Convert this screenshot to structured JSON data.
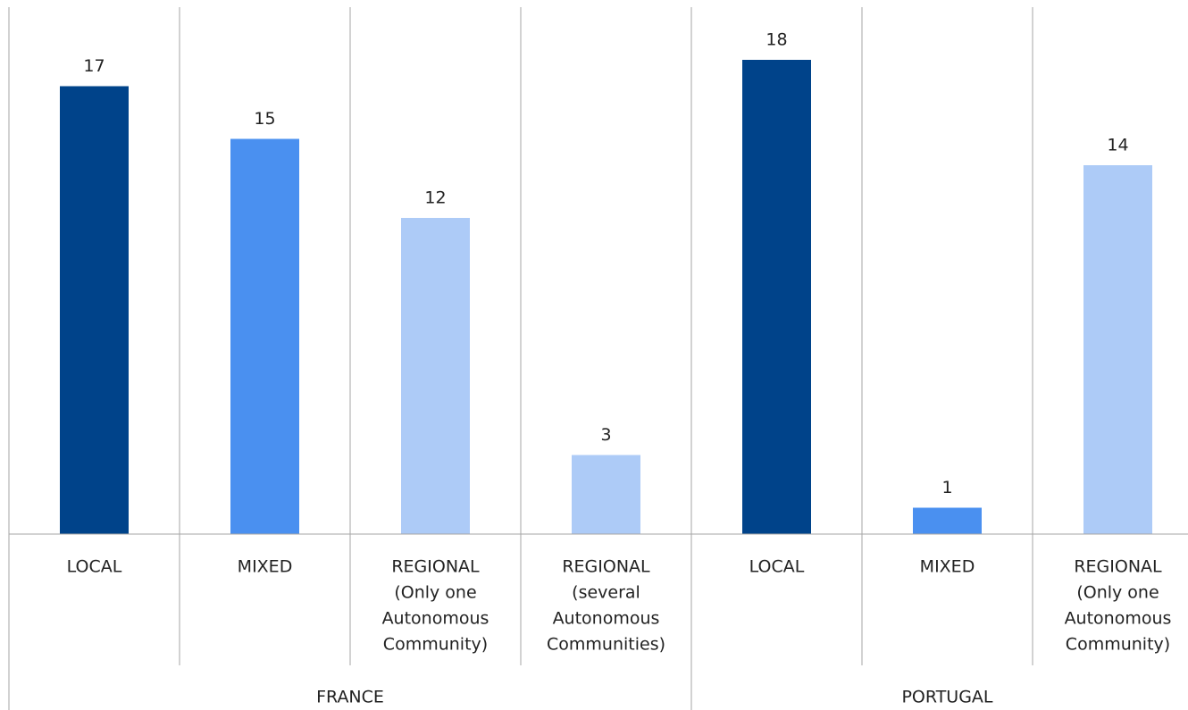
{
  "chart_data": {
    "type": "bar",
    "ylim": [
      0,
      20
    ],
    "groups": [
      {
        "name": "FRANCE",
        "categories": [
          [
            "LOCAL"
          ],
          [
            "MIXED"
          ],
          [
            "REGIONAL",
            "(Only one",
            "Autonomous",
            "Community)"
          ],
          [
            "REGIONAL",
            "(several",
            "Autonomous",
            "Communities)"
          ]
        ],
        "values": [
          17,
          15,
          12,
          3
        ],
        "colors": [
          "#00438a",
          "#4a90f0",
          "#adcbf7",
          "#adcbf7"
        ]
      },
      {
        "name": "PORTUGAL",
        "categories": [
          [
            "LOCAL"
          ],
          [
            "MIXED"
          ],
          [
            "REGIONAL",
            "(Only one",
            "Autonomous",
            "Community)"
          ]
        ],
        "values": [
          18,
          1,
          14
        ],
        "colors": [
          "#00438a",
          "#4a90f0",
          "#adcbf7"
        ]
      }
    ]
  }
}
